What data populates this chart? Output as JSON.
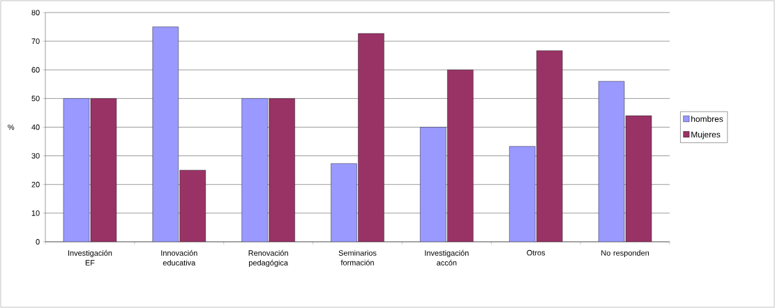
{
  "chart_data": {
    "type": "bar",
    "ylabel": "%",
    "categories": [
      "Investigación EF",
      "Innovación educativa",
      "Renovación pedagógica",
      "Seminarios formación",
      "Investigación accón",
      "Otros",
      "No responden"
    ],
    "series": [
      {
        "name": "hombres",
        "color": "#9999ff",
        "values": [
          50,
          75,
          50,
          27.3,
          40,
          33.3,
          56
        ]
      },
      {
        "name": "Mujeres",
        "color": "#993366",
        "values": [
          50,
          25,
          50,
          72.7,
          60,
          66.7,
          44
        ]
      }
    ],
    "ylim": [
      0,
      80
    ],
    "yticks": [
      0,
      10,
      20,
      30,
      40,
      50,
      60,
      70,
      80
    ],
    "grid": "y",
    "legend": "right"
  }
}
